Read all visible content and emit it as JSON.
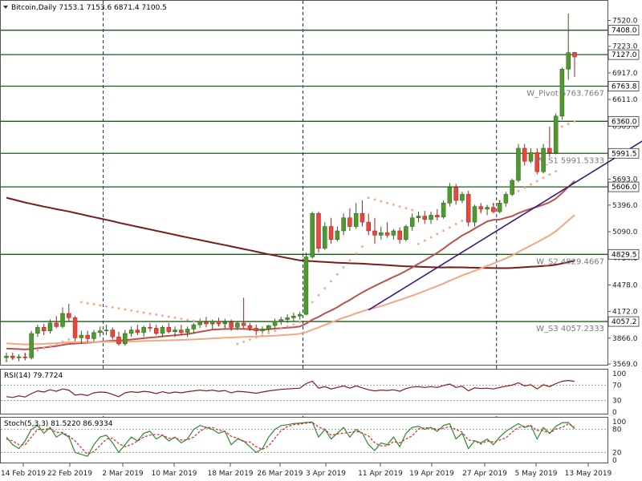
{
  "chart_data": {
    "type": "candlestick",
    "symbol": "Bitcoin",
    "timeframe": "Daily",
    "ohlc_header": "7153.1 7153.6 6871.4 7100.5",
    "title": "Bitcoin,Daily  7153.1 7153.6 6871.4 7100.5",
    "colors": {
      "bull": "#4e9a2a",
      "bear": "#e8473a",
      "level": "#2e8b2e",
      "trend": "#3b1a7a",
      "ma_long": "#7a1a1a",
      "ma_mid": "#c0504d",
      "ma_short": "#f4a582",
      "psar": "#f4a582",
      "rsi": "#8b1a1a",
      "stoch_main": "#2e8b2e",
      "stoch_signal": "#d62728"
    },
    "ylim": [
      3569,
      7700
    ],
    "y_ticks": [
      "7520.0",
      "7223.0",
      "6917.0",
      "6611.0",
      "6305.0",
      "5693.0",
      "5396.0",
      "5090.0",
      "4784.0",
      "4478.0",
      "4172.0",
      "3866.0",
      "3569.0"
    ],
    "x_ticks": [
      "14 Feb 2019",
      "22 Feb 2019",
      "2 Mar 2019",
      "10 Mar 2019",
      "18 Mar 2019",
      "26 Mar 2019",
      "3 Apr 2019",
      "11 Apr 2019",
      "19 Apr 2019",
      "27 Apr 2019",
      "5 May 2019",
      "13 May 2019"
    ],
    "levels": [
      {
        "value": 7408.0,
        "label": "7408.0",
        "pivot_label": ""
      },
      {
        "value": 7127.0,
        "label": "7127.0",
        "pivot_label": ""
      },
      {
        "value": 6763.8,
        "label": "6763.8",
        "pivot_label": "W_Pivot 6763.7667"
      },
      {
        "value": 6360.0,
        "label": "6360.0",
        "pivot_label": ""
      },
      {
        "value": 5991.5,
        "label": "5991.5",
        "pivot_label": "W_S1 5991.5333"
      },
      {
        "value": 5606.0,
        "label": "5606.0",
        "pivot_label": ""
      },
      {
        "value": 4829.5,
        "label": "4829.5",
        "pivot_label": "W_S2 4829.4667"
      },
      {
        "value": 4057.2,
        "label": "4057.2",
        "pivot_label": "W_S3 4057.2333"
      }
    ],
    "trendline": [
      {
        "x": 58,
        "y": 4190
      },
      {
        "x": 109,
        "y": 6450
      }
    ],
    "candles": [
      {
        "o": 3640,
        "h": 3700,
        "l": 3600,
        "c": 3660
      },
      {
        "o": 3660,
        "h": 3700,
        "l": 3620,
        "c": 3640
      },
      {
        "o": 3640,
        "h": 3680,
        "l": 3600,
        "c": 3650
      },
      {
        "o": 3650,
        "h": 3700,
        "l": 3610,
        "c": 3640
      },
      {
        "o": 3640,
        "h": 3950,
        "l": 3620,
        "c": 3920
      },
      {
        "o": 3920,
        "h": 4020,
        "l": 3880,
        "c": 3990
      },
      {
        "o": 3990,
        "h": 4030,
        "l": 3900,
        "c": 3950
      },
      {
        "o": 3950,
        "h": 4080,
        "l": 3920,
        "c": 4040
      },
      {
        "o": 4040,
        "h": 4120,
        "l": 3980,
        "c": 4000
      },
      {
        "o": 4000,
        "h": 4220,
        "l": 3980,
        "c": 4150
      },
      {
        "o": 4150,
        "h": 4260,
        "l": 4060,
        "c": 4100
      },
      {
        "o": 4100,
        "h": 4120,
        "l": 3830,
        "c": 3870
      },
      {
        "o": 3870,
        "h": 3950,
        "l": 3800,
        "c": 3900
      },
      {
        "o": 3900,
        "h": 3950,
        "l": 3820,
        "c": 3860
      },
      {
        "o": 3860,
        "h": 3960,
        "l": 3830,
        "c": 3930
      },
      {
        "o": 3930,
        "h": 4000,
        "l": 3880,
        "c": 3950
      },
      {
        "o": 3950,
        "h": 4020,
        "l": 3900,
        "c": 3960
      },
      {
        "o": 3960,
        "h": 3990,
        "l": 3850,
        "c": 3880
      },
      {
        "o": 3880,
        "h": 3940,
        "l": 3780,
        "c": 3800
      },
      {
        "o": 3800,
        "h": 3960,
        "l": 3780,
        "c": 3920
      },
      {
        "o": 3920,
        "h": 4000,
        "l": 3880,
        "c": 3960
      },
      {
        "o": 3960,
        "h": 4020,
        "l": 3900,
        "c": 3930
      },
      {
        "o": 3930,
        "h": 4010,
        "l": 3880,
        "c": 3990
      },
      {
        "o": 3990,
        "h": 4040,
        "l": 3940,
        "c": 3980
      },
      {
        "o": 3980,
        "h": 4020,
        "l": 3900,
        "c": 3920
      },
      {
        "o": 3920,
        "h": 4010,
        "l": 3880,
        "c": 3990
      },
      {
        "o": 3990,
        "h": 4040,
        "l": 3920,
        "c": 3940
      },
      {
        "o": 3940,
        "h": 4000,
        "l": 3880,
        "c": 3960
      },
      {
        "o": 3960,
        "h": 4020,
        "l": 3900,
        "c": 3930
      },
      {
        "o": 3930,
        "h": 4000,
        "l": 3880,
        "c": 3970
      },
      {
        "o": 3970,
        "h": 4040,
        "l": 3920,
        "c": 4020
      },
      {
        "o": 4020,
        "h": 4090,
        "l": 3980,
        "c": 4050
      },
      {
        "o": 4050,
        "h": 4110,
        "l": 3990,
        "c": 4030
      },
      {
        "o": 4030,
        "h": 4080,
        "l": 3970,
        "c": 4060
      },
      {
        "o": 4060,
        "h": 4100,
        "l": 4000,
        "c": 4030
      },
      {
        "o": 4030,
        "h": 4090,
        "l": 3980,
        "c": 4050
      },
      {
        "o": 4050,
        "h": 4080,
        "l": 3950,
        "c": 3990
      },
      {
        "o": 3990,
        "h": 4060,
        "l": 3960,
        "c": 4040
      },
      {
        "o": 4040,
        "h": 4330,
        "l": 3980,
        "c": 4010
      },
      {
        "o": 4010,
        "h": 4040,
        "l": 3950,
        "c": 3980
      },
      {
        "o": 3980,
        "h": 4020,
        "l": 3900,
        "c": 3950
      },
      {
        "o": 3950,
        "h": 4000,
        "l": 3920,
        "c": 3970
      },
      {
        "o": 3970,
        "h": 4020,
        "l": 3940,
        "c": 4010
      },
      {
        "o": 4010,
        "h": 4090,
        "l": 3980,
        "c": 4060
      },
      {
        "o": 4060,
        "h": 4110,
        "l": 4020,
        "c": 4080
      },
      {
        "o": 4080,
        "h": 4140,
        "l": 4040,
        "c": 4100
      },
      {
        "o": 4100,
        "h": 4160,
        "l": 4060,
        "c": 4120
      },
      {
        "o": 4120,
        "h": 4170,
        "l": 4080,
        "c": 4140
      },
      {
        "o": 4140,
        "h": 4850,
        "l": 4130,
        "c": 4800
      },
      {
        "o": 4800,
        "h": 5320,
        "l": 4780,
        "c": 5300
      },
      {
        "o": 5300,
        "h": 5320,
        "l": 4850,
        "c": 4900
      },
      {
        "o": 4900,
        "h": 5200,
        "l": 4880,
        "c": 5150
      },
      {
        "o": 5150,
        "h": 5250,
        "l": 4950,
        "c": 5000
      },
      {
        "o": 5000,
        "h": 5150,
        "l": 4980,
        "c": 5100
      },
      {
        "o": 5100,
        "h": 5300,
        "l": 5050,
        "c": 5250
      },
      {
        "o": 5250,
        "h": 5360,
        "l": 5100,
        "c": 5150
      },
      {
        "o": 5150,
        "h": 5420,
        "l": 5120,
        "c": 5300
      },
      {
        "o": 5300,
        "h": 5450,
        "l": 5150,
        "c": 5200
      },
      {
        "o": 5200,
        "h": 5300,
        "l": 5050,
        "c": 5100
      },
      {
        "o": 5100,
        "h": 5250,
        "l": 4950,
        "c": 5050
      },
      {
        "o": 5050,
        "h": 5150,
        "l": 5000,
        "c": 5080
      },
      {
        "o": 5080,
        "h": 5200,
        "l": 5020,
        "c": 5050
      },
      {
        "o": 5050,
        "h": 5120,
        "l": 5000,
        "c": 5100
      },
      {
        "o": 5100,
        "h": 5140,
        "l": 4950,
        "c": 5000
      },
      {
        "o": 5000,
        "h": 5170,
        "l": 4980,
        "c": 5150
      },
      {
        "o": 5150,
        "h": 5300,
        "l": 5100,
        "c": 5250
      },
      {
        "o": 5250,
        "h": 5320,
        "l": 5200,
        "c": 5270
      },
      {
        "o": 5270,
        "h": 5330,
        "l": 5180,
        "c": 5230
      },
      {
        "o": 5230,
        "h": 5320,
        "l": 5180,
        "c": 5280
      },
      {
        "o": 5280,
        "h": 5350,
        "l": 5220,
        "c": 5260
      },
      {
        "o": 5260,
        "h": 5450,
        "l": 5240,
        "c": 5420
      },
      {
        "o": 5420,
        "h": 5650,
        "l": 5380,
        "c": 5600
      },
      {
        "o": 5600,
        "h": 5640,
        "l": 5400,
        "c": 5450
      },
      {
        "o": 5450,
        "h": 5550,
        "l": 5420,
        "c": 5520
      },
      {
        "o": 5520,
        "h": 5560,
        "l": 5150,
        "c": 5200
      },
      {
        "o": 5200,
        "h": 5400,
        "l": 5150,
        "c": 5380
      },
      {
        "o": 5380,
        "h": 5420,
        "l": 5300,
        "c": 5350
      },
      {
        "o": 5350,
        "h": 5400,
        "l": 5280,
        "c": 5370
      },
      {
        "o": 5370,
        "h": 5420,
        "l": 5300,
        "c": 5320
      },
      {
        "o": 5320,
        "h": 5450,
        "l": 5300,
        "c": 5420
      },
      {
        "o": 5420,
        "h": 5550,
        "l": 5380,
        "c": 5520
      },
      {
        "o": 5520,
        "h": 5700,
        "l": 5500,
        "c": 5680
      },
      {
        "o": 5680,
        "h": 6100,
        "l": 5660,
        "c": 6050
      },
      {
        "o": 6050,
        "h": 6100,
        "l": 5850,
        "c": 5900
      },
      {
        "o": 5900,
        "h": 6050,
        "l": 5880,
        "c": 6000
      },
      {
        "o": 6000,
        "h": 6050,
        "l": 5750,
        "c": 5780
      },
      {
        "o": 5780,
        "h": 6100,
        "l": 5760,
        "c": 6050
      },
      {
        "o": 6050,
        "h": 6300,
        "l": 5950,
        "c": 6000
      },
      {
        "o": 6000,
        "h": 6450,
        "l": 5980,
        "c": 6420
      },
      {
        "o": 6420,
        "h": 6980,
        "l": 6380,
        "c": 6960
      },
      {
        "o": 6960,
        "h": 7600,
        "l": 6840,
        "c": 7150
      },
      {
        "o": 7153.1,
        "h": 7153.6,
        "l": 6871.4,
        "c": 7100.5
      }
    ],
    "indicators": [
      {
        "name": "RSI(14)",
        "value_text": "79.7724",
        "scale": [
          "100",
          "70",
          "30",
          "0"
        ],
        "ylim": [
          0,
          100
        ],
        "values": [
          40,
          38,
          42,
          39,
          48,
          55,
          52,
          58,
          54,
          60,
          57,
          44,
          46,
          43,
          50,
          52,
          51,
          46,
          40,
          50,
          53,
          51,
          54,
          52,
          48,
          53,
          49,
          52,
          50,
          53,
          55,
          57,
          55,
          57,
          54,
          56,
          50,
          54,
          53,
          51,
          49,
          52,
          55,
          57,
          59,
          60,
          61,
          62,
          74,
          80,
          62,
          66,
          60,
          64,
          68,
          62,
          68,
          63,
          58,
          55,
          57,
          56,
          58,
          54,
          61,
          65,
          66,
          64,
          66,
          64,
          69,
          73,
          64,
          67,
          55,
          63,
          61,
          62,
          60,
          64,
          67,
          70,
          76,
          68,
          71,
          60,
          71,
          66,
          74,
          80,
          82,
          79.7724
        ]
      },
      {
        "name": "Stoch(5,3,3)",
        "value_text": "81.5220 86.9334",
        "scale": [
          "100",
          "80",
          "20",
          "0"
        ],
        "ylim": [
          0,
          100
        ],
        "main": [
          60,
          40,
          30,
          50,
          80,
          90,
          70,
          85,
          60,
          70,
          60,
          20,
          15,
          10,
          40,
          60,
          65,
          45,
          20,
          40,
          60,
          50,
          70,
          75,
          55,
          65,
          50,
          60,
          45,
          55,
          80,
          90,
          85,
          80,
          70,
          75,
          40,
          55,
          50,
          35,
          20,
          30,
          60,
          80,
          90,
          92,
          95,
          96,
          98,
          99,
          60,
          80,
          55,
          70,
          85,
          60,
          80,
          70,
          40,
          25,
          45,
          40,
          60,
          35,
          70,
          85,
          88,
          80,
          85,
          75,
          90,
          95,
          55,
          70,
          30,
          50,
          45,
          55,
          40,
          60,
          75,
          85,
          95,
          85,
          90,
          55,
          85,
          70,
          88,
          97,
          98,
          81.522
        ],
        "signal": [
          55,
          50,
          40,
          40,
          60,
          80,
          80,
          82,
          72,
          72,
          63,
          50,
          32,
          15,
          22,
          38,
          55,
          57,
          43,
          35,
          40,
          50,
          60,
          65,
          67,
          65,
          57,
          58,
          52,
          53,
          60,
          75,
          85,
          85,
          78,
          75,
          62,
          57,
          48,
          47,
          35,
          28,
          37,
          57,
          77,
          87,
          92,
          94,
          96,
          98,
          86,
          80,
          65,
          68,
          70,
          72,
          75,
          70,
          63,
          45,
          37,
          37,
          48,
          45,
          55,
          63,
          81,
          84,
          84,
          80,
          83,
          87,
          80,
          73,
          52,
          50,
          42,
          50,
          47,
          52,
          58,
          73,
          85,
          88,
          90,
          77,
          77,
          70,
          81,
          85,
          94,
          86.9334
        ]
      }
    ]
  }
}
